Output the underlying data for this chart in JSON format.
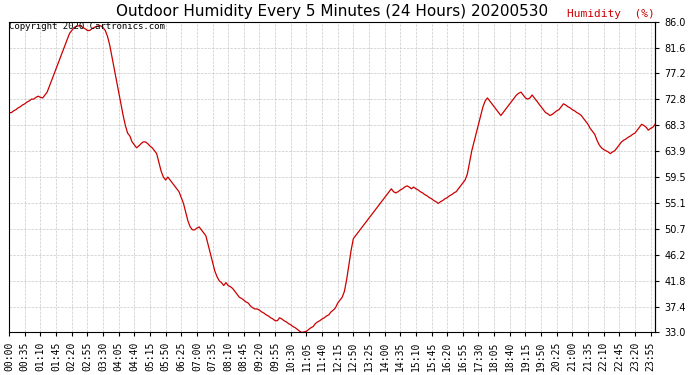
{
  "title": "Outdoor Humidity Every 5 Minutes (24 Hours) 20200530",
  "ylabel_text": "Humidity  (%)",
  "copyright_text": "Copyright 2020 Cartronics.com",
  "line_color": "#cc0000",
  "background_color": "#ffffff",
  "grid_color": "#bbbbbb",
  "yticks": [
    33.0,
    37.4,
    41.8,
    46.2,
    50.7,
    55.1,
    59.5,
    63.9,
    68.3,
    72.8,
    77.2,
    81.6,
    86.0
  ],
  "ylim": [
    33.0,
    86.0
  ],
  "humidity_values": [
    70.5,
    70.5,
    70.8,
    71.0,
    71.3,
    71.5,
    71.8,
    72.0,
    72.3,
    72.5,
    72.8,
    72.8,
    73.1,
    73.3,
    73.1,
    73.0,
    73.5,
    74.0,
    75.0,
    76.0,
    77.0,
    78.0,
    79.0,
    80.0,
    81.0,
    82.0,
    83.0,
    84.0,
    84.5,
    85.0,
    85.2,
    85.3,
    85.3,
    85.0,
    84.8,
    84.5,
    84.5,
    84.8,
    85.0,
    85.2,
    85.3,
    85.3,
    85.0,
    84.5,
    83.5,
    82.0,
    80.0,
    78.0,
    76.0,
    74.0,
    72.0,
    70.0,
    68.3,
    67.0,
    66.5,
    65.5,
    65.0,
    64.5,
    64.8,
    65.2,
    65.5,
    65.5,
    65.2,
    64.8,
    64.5,
    64.0,
    63.5,
    62.0,
    60.5,
    59.5,
    59.0,
    59.5,
    59.0,
    58.5,
    58.0,
    57.5,
    57.0,
    56.0,
    55.0,
    53.5,
    52.0,
    51.0,
    50.5,
    50.5,
    50.8,
    51.0,
    50.5,
    50.0,
    49.5,
    48.0,
    46.5,
    45.0,
    43.5,
    42.5,
    41.8,
    41.5,
    41.0,
    41.5,
    41.0,
    40.8,
    40.5,
    40.0,
    39.5,
    39.0,
    38.8,
    38.5,
    38.2,
    38.0,
    37.5,
    37.2,
    37.0,
    37.0,
    36.8,
    36.5,
    36.3,
    36.0,
    35.8,
    35.5,
    35.3,
    35.0,
    35.0,
    35.5,
    35.3,
    35.0,
    34.8,
    34.5,
    34.3,
    34.0,
    33.8,
    33.5,
    33.2,
    33.0,
    33.1,
    33.2,
    33.5,
    33.8,
    34.0,
    34.5,
    34.8,
    35.0,
    35.3,
    35.5,
    35.8,
    36.0,
    36.5,
    36.8,
    37.2,
    38.0,
    38.5,
    39.0,
    40.0,
    42.0,
    44.5,
    47.0,
    49.0,
    49.5,
    50.0,
    50.5,
    51.0,
    51.5,
    52.0,
    52.5,
    53.0,
    53.5,
    54.0,
    54.5,
    55.0,
    55.5,
    56.0,
    56.5,
    57.0,
    57.5,
    57.0,
    56.8,
    57.0,
    57.3,
    57.5,
    57.8,
    58.0,
    57.8,
    57.5,
    57.8,
    57.5,
    57.3,
    57.0,
    56.8,
    56.5,
    56.3,
    56.0,
    55.8,
    55.5,
    55.3,
    55.0,
    55.3,
    55.5,
    55.8,
    56.0,
    56.3,
    56.5,
    56.8,
    57.0,
    57.5,
    58.0,
    58.5,
    59.0,
    60.0,
    62.0,
    64.0,
    65.5,
    67.0,
    68.5,
    70.0,
    71.5,
    72.5,
    73.0,
    72.5,
    72.0,
    71.5,
    71.0,
    70.5,
    70.0,
    70.5,
    71.0,
    71.5,
    72.0,
    72.5,
    73.0,
    73.5,
    73.8,
    74.0,
    73.5,
    73.0,
    72.8,
    73.0,
    73.5,
    73.0,
    72.5,
    72.0,
    71.5,
    71.0,
    70.5,
    70.3,
    70.0,
    70.2,
    70.5,
    70.8,
    71.0,
    71.5,
    72.0,
    71.8,
    71.5,
    71.3,
    71.0,
    70.8,
    70.5,
    70.3,
    70.0,
    69.5,
    69.0,
    68.5,
    67.8,
    67.3,
    66.8,
    65.8,
    65.0,
    64.5,
    64.2,
    64.0,
    63.8,
    63.5,
    63.8,
    64.0,
    64.5,
    65.0,
    65.5,
    65.8,
    66.0,
    66.3,
    66.5,
    66.8,
    67.0,
    67.5,
    68.0,
    68.5,
    68.3,
    68.0,
    67.5,
    67.8,
    68.0,
    68.5
  ],
  "xtick_step": 7,
  "title_fontsize": 11,
  "tick_fontsize": 7.0,
  "ylabel_fontsize": 8,
  "copyright_fontsize": 6.5
}
